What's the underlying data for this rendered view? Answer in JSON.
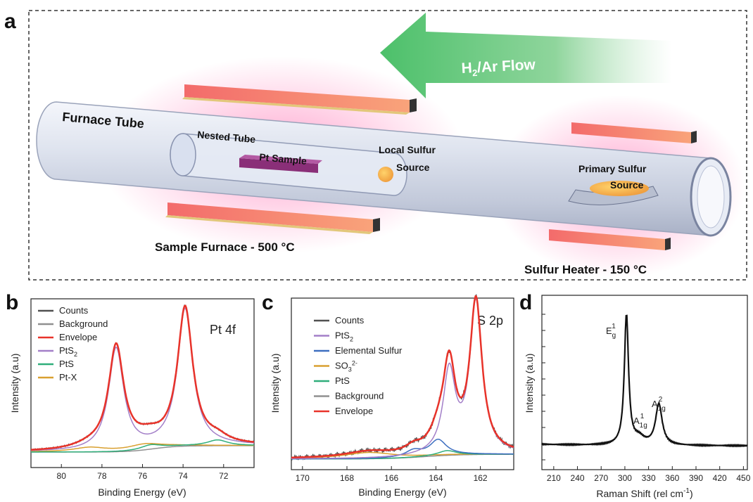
{
  "panel_a": {
    "letter": "a",
    "flow_label": "H",
    "flow_sub": "2",
    "flow_rest": "/Ar Flow",
    "furnace_tube": "Furnace Tube",
    "nested_tube": "Nested Tube",
    "pt_sample": "Pt Sample",
    "local_sulfur_1": "Local Sulfur",
    "local_sulfur_2": "Source",
    "primary_sulfur_1": "Primary Sulfur",
    "primary_sulfur_2": "Source",
    "sample_furnace": "Sample Furnace  - 500 °C",
    "sulfur_heater": "Sulfur Heater  - 150 °C"
  },
  "chart_data": [
    {
      "id": "b",
      "type": "line",
      "letter": "b",
      "corner_label": "Pt 4f",
      "xlabel": "Binding Energy (eV)",
      "ylabel": "Intensity (a.u)",
      "x_reversed": true,
      "xlim": [
        81.5,
        70.5
      ],
      "ylim": [
        0,
        1
      ],
      "xticks": [
        80,
        78,
        76,
        74,
        72
      ],
      "legend": [
        {
          "name": "Counts",
          "color": "#505050"
        },
        {
          "name": "Background",
          "color": "#909090"
        },
        {
          "name": "Envelope",
          "color": "#e8332a"
        },
        {
          "name": "PtS2",
          "color": "#a37fc8"
        },
        {
          "name": "PtS",
          "color": "#2fae7a"
        },
        {
          "name": "Pt-X",
          "color": "#d9a030"
        }
      ],
      "peaks": [
        {
          "component": "PtS2",
          "center": 77.3,
          "height": 0.72
        },
        {
          "component": "PtS2",
          "center": 73.9,
          "height": 0.96
        },
        {
          "component": "PtS",
          "center": 75.6,
          "height": 0.03
        },
        {
          "component": "PtS",
          "center": 72.3,
          "height": 0.04
        },
        {
          "component": "Pt-X",
          "center": 78.6,
          "height": 0.03
        },
        {
          "component": "Pt-X",
          "center": 75.9,
          "height": 0.04
        }
      ]
    },
    {
      "id": "c",
      "type": "line",
      "letter": "c",
      "corner_label": "S 2p",
      "xlabel": "Binding Energy (eV)",
      "ylabel": "Intensity (a.u)",
      "x_reversed": true,
      "xlim": [
        170.5,
        160.5
      ],
      "ylim": [
        0,
        1
      ],
      "xticks": [
        170,
        168,
        166,
        164,
        162
      ],
      "legend": [
        {
          "name": "Counts",
          "color": "#505050"
        },
        {
          "name": "PtS2",
          "color": "#a37fc8"
        },
        {
          "name": "Elemental Sulfur",
          "color": "#3d6fc0"
        },
        {
          "name": "SO32-",
          "color": "#d9a030"
        },
        {
          "name": "PtS",
          "color": "#2fae7a"
        },
        {
          "name": "Background",
          "color": "#909090"
        },
        {
          "name": "Envelope",
          "color": "#e8332a"
        }
      ],
      "peaks": [
        {
          "component": "PtS2",
          "center": 162.2,
          "height": 0.96
        },
        {
          "component": "PtS2",
          "center": 163.4,
          "height": 0.52
        },
        {
          "component": "Elemental Sulfur",
          "center": 163.9,
          "height": 0.1
        },
        {
          "component": "Elemental Sulfur",
          "center": 165.0,
          "height": 0.04
        },
        {
          "component": "SO32-",
          "center": 167.0,
          "height": 0.04
        },
        {
          "component": "PtS",
          "center": 163.5,
          "height": 0.03
        }
      ]
    },
    {
      "id": "d",
      "type": "line",
      "letter": "d",
      "xlabel": "Raman Shift (rel cm",
      "xlabel_sup": "-1",
      "xlabel_end": ")",
      "ylabel": "Intensity (a.u)",
      "xlim": [
        195,
        455
      ],
      "ylim": [
        0,
        1
      ],
      "xticks": [
        210,
        240,
        270,
        300,
        330,
        360,
        390,
        420,
        450
      ],
      "peaks": [
        {
          "label": "Eg1",
          "center": 302,
          "height": 0.95
        },
        {
          "label": "A1g1",
          "center": 318,
          "height": 0.05
        },
        {
          "label": "A1g2",
          "center": 343,
          "height": 0.3
        }
      ],
      "peak_labels": {
        "eg_main": "E",
        "eg_sub": "g",
        "eg_sup": "1",
        "a1_main": "A",
        "a1_sub": "1g",
        "a1_sup": "1",
        "a2_main": "A",
        "a2_sub": "1g",
        "a2_sup": "2"
      }
    }
  ]
}
